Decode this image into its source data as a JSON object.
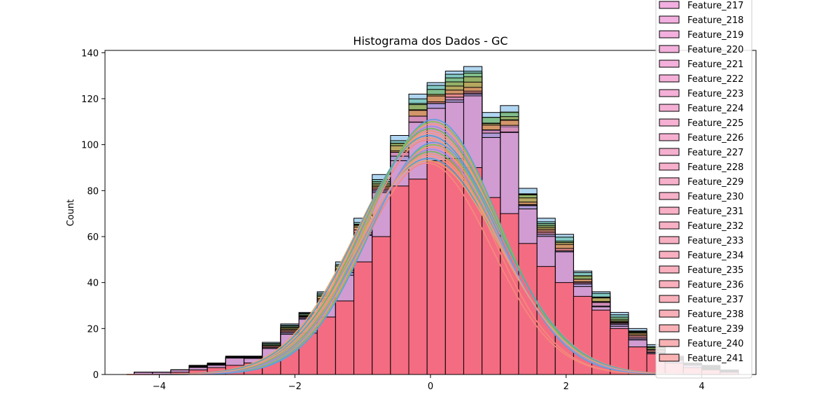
{
  "chart_data": {
    "type": "histogram",
    "title": "Histograma dos Dados - GC",
    "xlabel": "",
    "ylabel": "Count",
    "xlim": [
      -4.8,
      4.8
    ],
    "ylim": [
      0,
      141
    ],
    "xticks": [
      -4,
      -2,
      0,
      2,
      4
    ],
    "xtick_labels": [
      "−4",
      "−2",
      "0",
      "2",
      "4"
    ],
    "yticks": [
      0,
      20,
      40,
      60,
      80,
      100,
      120,
      140
    ],
    "ytick_labels": [
      "0",
      "20",
      "40",
      "60",
      "80",
      "100",
      "120",
      "140"
    ],
    "grid": false,
    "kde": true,
    "legend_position": "top-right",
    "bins": {
      "left_edges": [
        -4.37,
        -4.1,
        -3.83,
        -3.56,
        -3.29,
        -3.02,
        -2.75,
        -2.48,
        -2.21,
        -1.94,
        -1.67,
        -1.4,
        -1.13,
        -0.86,
        -0.59,
        -0.32,
        -0.05,
        0.22,
        0.49,
        0.76,
        1.03,
        1.3,
        1.57,
        1.84,
        2.11,
        2.38,
        2.65,
        2.92,
        3.19,
        3.46,
        3.73,
        4.0,
        4.27
      ],
      "width": 0.27
    },
    "max_counts": [
      1,
      1,
      2,
      4,
      5,
      8,
      8,
      14,
      22,
      27,
      36,
      49,
      68,
      87,
      104,
      122,
      127,
      132,
      134,
      114,
      117,
      81,
      68,
      61,
      45,
      36,
      27,
      20,
      13,
      8,
      5,
      4,
      2
    ],
    "mid_counts": [
      1,
      1,
      2,
      3,
      4,
      7,
      7,
      11,
      17,
      24,
      31,
      43,
      60,
      78,
      93,
      108,
      115,
      118,
      119,
      103,
      104,
      71,
      60,
      52,
      38,
      29,
      20,
      15,
      9,
      6,
      4,
      2,
      1
    ],
    "front_series_counts": [
      0,
      0,
      1,
      2,
      3,
      4,
      5,
      6,
      12,
      18,
      25,
      32,
      49,
      60,
      82,
      85,
      93,
      94,
      90,
      77,
      70,
      57,
      47,
      40,
      34,
      28,
      20,
      12,
      9,
      5,
      3,
      2,
      1
    ],
    "series_palette": [
      "#6fb2e4",
      "#5fbf9f",
      "#7eb25e",
      "#a6a64a",
      "#d2a05b",
      "#e98970",
      "#ef7fa6",
      "#c48fe0",
      "#8fa6ee",
      "#ee9fd0"
    ],
    "front_color": "#f5697d",
    "kde_palette": [
      "#f48a7c",
      "#f5957f",
      "#ec9a72",
      "#e8a36a",
      "#8cbf4f",
      "#6cb85a",
      "#4fa3c8",
      "#5aa2e0",
      "#9b8fe0",
      "#f19b84"
    ],
    "legend_entries": [
      {
        "label": "Feature_217",
        "color": "#f2b0e0"
      },
      {
        "label": "Feature_218",
        "color": "#f2b0e0"
      },
      {
        "label": "Feature_219",
        "color": "#f3b0de"
      },
      {
        "label": "Feature_220",
        "color": "#f3b0dc"
      },
      {
        "label": "Feature_221",
        "color": "#f3b0da"
      },
      {
        "label": "Feature_222",
        "color": "#f4b0d8"
      },
      {
        "label": "Feature_223",
        "color": "#f4b0d6"
      },
      {
        "label": "Feature_224",
        "color": "#f4b0d4"
      },
      {
        "label": "Feature_225",
        "color": "#f5b0d2"
      },
      {
        "label": "Feature_226",
        "color": "#f5b0d0"
      },
      {
        "label": "Feature_227",
        "color": "#f5b0ce"
      },
      {
        "label": "Feature_228",
        "color": "#f6b0cc"
      },
      {
        "label": "Feature_229",
        "color": "#f6b0ca"
      },
      {
        "label": "Feature_230",
        "color": "#f6b0c8"
      },
      {
        "label": "Feature_231",
        "color": "#f7b0c6"
      },
      {
        "label": "Feature_232",
        "color": "#f7b0c4"
      },
      {
        "label": "Feature_233",
        "color": "#f7b0c2"
      },
      {
        "label": "Feature_234",
        "color": "#f8b0c0"
      },
      {
        "label": "Feature_235",
        "color": "#f8b0be"
      },
      {
        "label": "Feature_236",
        "color": "#f8b0bc"
      },
      {
        "label": "Feature_237",
        "color": "#f8b0ba"
      },
      {
        "label": "Feature_238",
        "color": "#f8b0b8"
      },
      {
        "label": "Feature_239",
        "color": "#f8b1b6"
      },
      {
        "label": "Feature_240",
        "color": "#f8b2b4"
      },
      {
        "label": "Feature_241",
        "color": "#f8b3b2"
      }
    ]
  }
}
